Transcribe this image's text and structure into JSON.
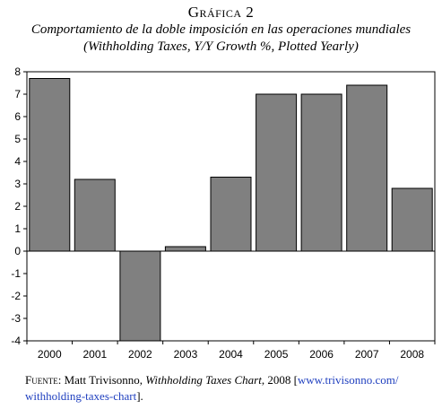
{
  "figure": {
    "label": "Gráfica 2",
    "title": "Comportamiento de la doble imposición en las operaciones mundiales",
    "subtitle": "(Withholding Taxes, Y/Y Growth %, Plotted Yearly)"
  },
  "source": {
    "prefix": "Fuente:",
    "author": " Matt Trivisonno, ",
    "work": "Withholding Taxes Chart",
    "year": ", 2008 [",
    "url_line1": "www.trivisonno.com/",
    "url_line2": "withholding-taxes-chart",
    "suffix": "]."
  },
  "colors": {
    "bar": "#808080",
    "bar_stroke": "#000000",
    "axis": "#000000"
  },
  "chart_data": {
    "type": "bar",
    "title": "",
    "xlabel": "",
    "ylabel": "",
    "categories": [
      "2000",
      "2001",
      "2002",
      "2003",
      "2004",
      "2005",
      "2006",
      "2007",
      "2008"
    ],
    "values": [
      7.7,
      3.2,
      -4.2,
      0.2,
      3.3,
      7.0,
      7.0,
      7.4,
      2.8
    ],
    "ylim": [
      -4,
      8
    ],
    "yticks": [
      8,
      7,
      6,
      5,
      4,
      3,
      2,
      1,
      0,
      -1,
      -2,
      -3,
      -4
    ],
    "grid": false,
    "legend": "none"
  }
}
